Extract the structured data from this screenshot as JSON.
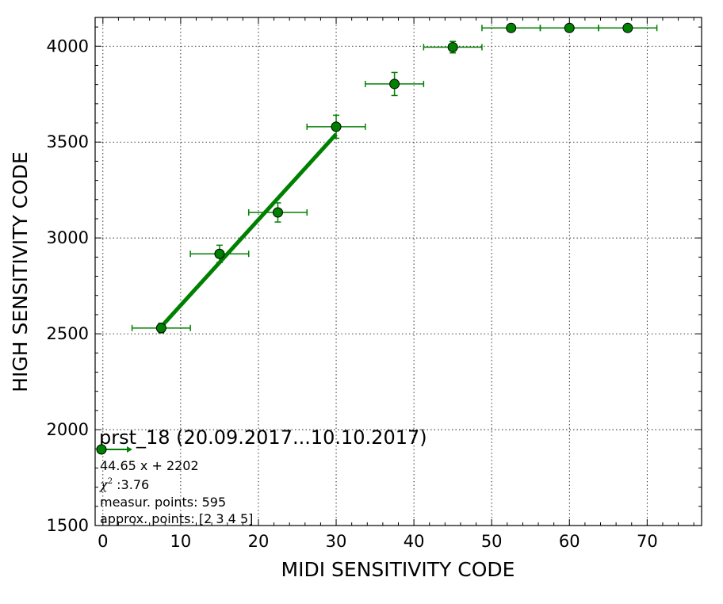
{
  "chart_data": {
    "type": "scatter",
    "xlabel": "MIDI SENSITIVITY CODE",
    "ylabel": "HIGH SENSITIVITY CODE",
    "xlim": [
      -1,
      77
    ],
    "ylim": [
      1500,
      4150
    ],
    "xticks": [
      0,
      10,
      20,
      30,
      40,
      50,
      60,
      70
    ],
    "yticks": [
      1500,
      2000,
      2500,
      3000,
      3500,
      4000
    ],
    "grid": true,
    "color": "#008000",
    "points": [
      {
        "x": 7.5,
        "y": 2530,
        "xerr": 3.75,
        "yerr": 25
      },
      {
        "x": 15,
        "y": 2917,
        "xerr": 3.75,
        "yerr": 45
      },
      {
        "x": 22.5,
        "y": 3133,
        "xerr": 3.75,
        "yerr": 50
      },
      {
        "x": 30,
        "y": 3580,
        "xerr": 3.75,
        "yerr": 60
      },
      {
        "x": 37.5,
        "y": 3803,
        "xerr": 3.75,
        "yerr": 60
      },
      {
        "x": 45,
        "y": 3995,
        "xerr": 3.75,
        "yerr": 30
      },
      {
        "x": 52.5,
        "y": 4095,
        "xerr": 3.75,
        "yerr": 0
      },
      {
        "x": 60,
        "y": 4095,
        "xerr": 3.75,
        "yerr": 0
      },
      {
        "x": 67.5,
        "y": 4095,
        "xerr": 3.75,
        "yerr": 0
      }
    ],
    "fit": {
      "slope": 44.65,
      "intercept": 2202,
      "x_range": [
        7.5,
        30
      ]
    },
    "legend": {
      "placement": "bottom-left",
      "title": "prst_18 (20.09.2017...10.10.2017)",
      "fit_label": "44.65 x + 2202",
      "chi_symbol": "χ",
      "chi_power": "2",
      "chi_value": " :3.76",
      "measur_points": "measur. points: 595",
      "approx_points": "approx. points: [2 3 4 5]"
    }
  }
}
